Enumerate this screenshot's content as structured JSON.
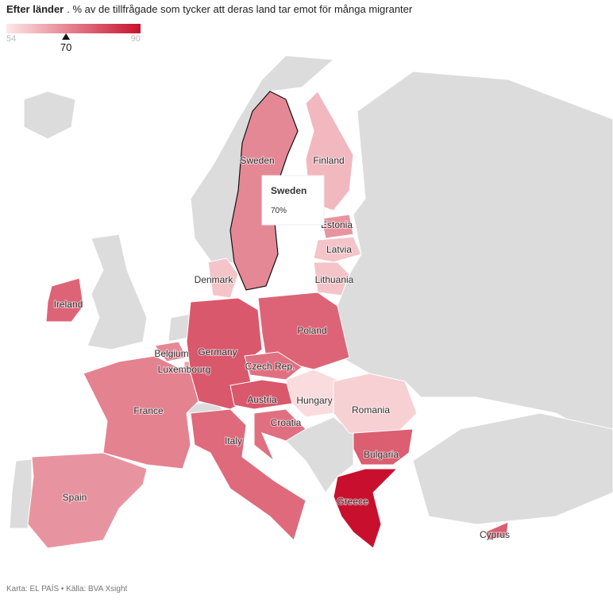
{
  "header": {
    "title": "Efter länder",
    "subtitle": ". % av de tillfrågade som tycker att deras land tar emot för många migranter"
  },
  "legend": {
    "min": 54,
    "max": 90,
    "marker": 70,
    "colors": [
      "#fde8e8",
      "#c8102e"
    ]
  },
  "tooltip": {
    "name": "Sweden",
    "value": "70%"
  },
  "countries": [
    {
      "name": "Sweden",
      "value": 70
    },
    {
      "name": "Finland",
      "value": 62
    },
    {
      "name": "Denmark",
      "value": 60
    },
    {
      "name": "Estonia",
      "value": 68
    },
    {
      "name": "Latvia",
      "value": 60
    },
    {
      "name": "Lithuania",
      "value": 60
    },
    {
      "name": "Ireland",
      "value": 76
    },
    {
      "name": "Belgium",
      "value": 70
    },
    {
      "name": "Luxembourg",
      "value": 66
    },
    {
      "name": "Germany",
      "value": 78
    },
    {
      "name": "Poland",
      "value": 76
    },
    {
      "name": "Czech Rep.",
      "value": 74
    },
    {
      "name": "Austria",
      "value": 78
    },
    {
      "name": "Hungary",
      "value": 56
    },
    {
      "name": "Romania",
      "value": 58
    },
    {
      "name": "France",
      "value": 71
    },
    {
      "name": "Spain",
      "value": 68
    },
    {
      "name": "Italy",
      "value": 75
    },
    {
      "name": "Croatia",
      "value": 74
    },
    {
      "name": "Bulgaria",
      "value": 77
    },
    {
      "name": "Greece",
      "value": 90
    },
    {
      "name": "Cyprus",
      "value": 77
    }
  ],
  "footer": "Karta: EL PAÍS • Källa: BVA Xsight"
}
